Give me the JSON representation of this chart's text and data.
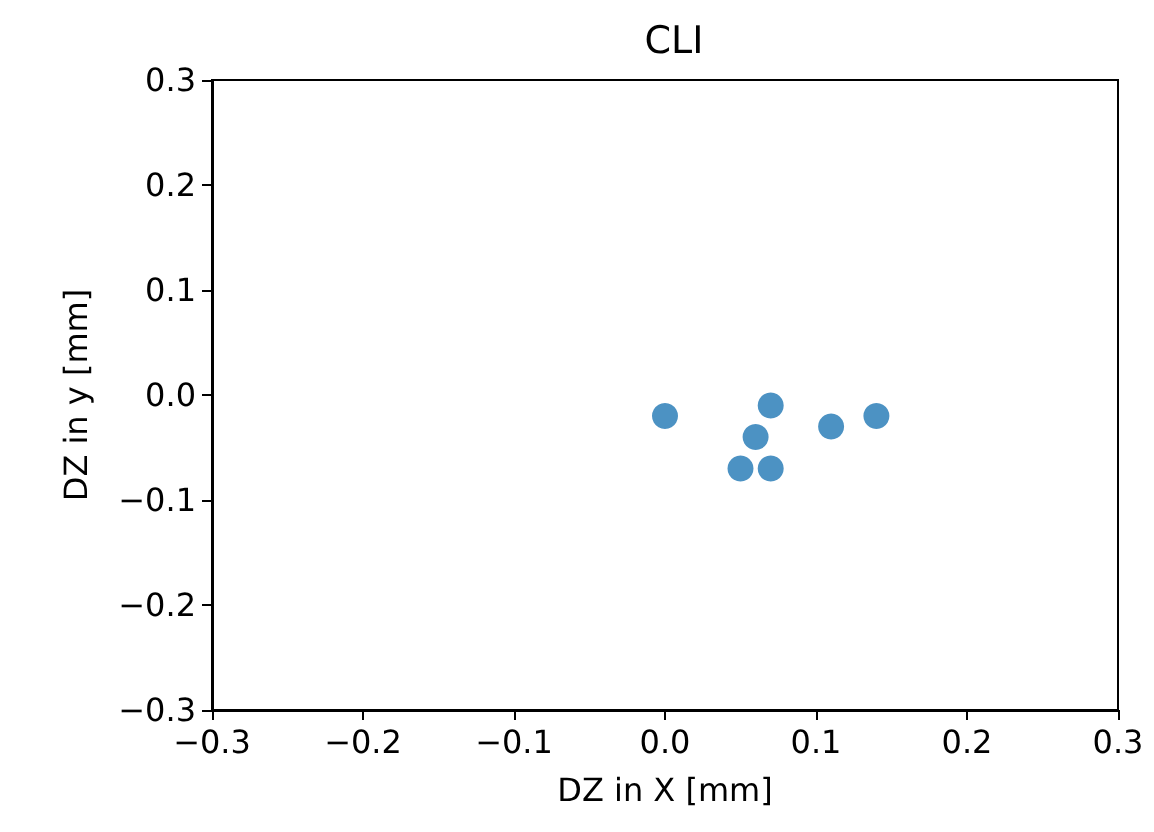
{
  "chart_data": {
    "type": "scatter",
    "title": "CLI",
    "xlabel": "DZ in X [mm]",
    "ylabel": "DZ in y [mm]",
    "x": [
      0.0,
      0.07,
      0.06,
      0.05,
      0.07,
      0.11,
      0.14
    ],
    "series": [
      {
        "color": "#1f77b4",
        "values": [
          -0.02,
          -0.01,
          -0.04,
          -0.07,
          -0.07,
          -0.03,
          -0.02
        ]
      }
    ],
    "xlim": [
      -0.3,
      0.3
    ],
    "ylim": [
      -0.3,
      0.3
    ],
    "xticks": [
      {
        "value": -0.3,
        "label": "−0.3"
      },
      {
        "value": -0.2,
        "label": "−0.2"
      },
      {
        "value": -0.1,
        "label": "−0.1"
      },
      {
        "value": 0,
        "label": "0.0"
      },
      0.1,
      0.2,
      0.3
    ],
    "yticks": [
      {
        "value": -0.3,
        "label": "−0.3"
      },
      {
        "value": -0.2,
        "label": "−0.2"
      },
      {
        "value": -0.1,
        "label": "−0.1"
      },
      {
        "value": 0,
        "label": "0.0"
      },
      0.1,
      0.2,
      0.3
    ],
    "grid": false,
    "marker": "circle"
  }
}
